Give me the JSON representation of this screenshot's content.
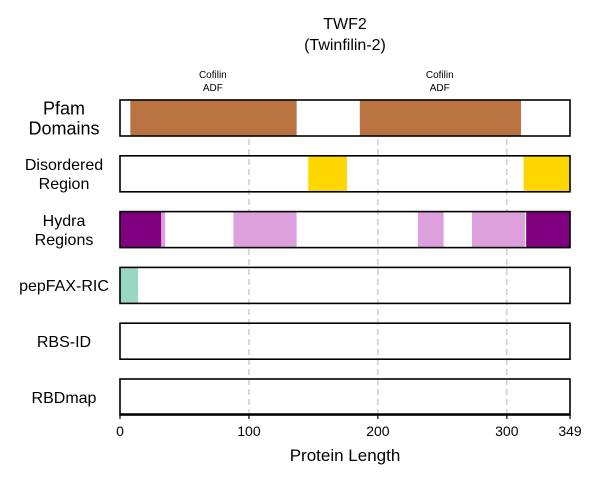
{
  "chart_data": {
    "type": "bar",
    "title": "TWF2",
    "subtitle": "(Twinfilin-2)",
    "xlabel": "Protein Length",
    "xlim": [
      0,
      349
    ],
    "xticks": [
      0,
      100,
      200,
      300,
      349
    ],
    "grid_x": [
      100,
      200,
      300
    ],
    "tracks": [
      {
        "label_lines": [
          "Pfam",
          "Domains"
        ],
        "segments": [
          {
            "start": 8,
            "end": 137,
            "color": "#B87340"
          },
          {
            "start": 186,
            "end": 311,
            "color": "#B87340"
          }
        ],
        "annotations": [
          {
            "center": 72,
            "lines": [
              "Cofilin",
              "ADF"
            ]
          },
          {
            "center": 248,
            "lines": [
              "Cofilin",
              "ADF"
            ]
          }
        ]
      },
      {
        "label_lines": [
          "Disordered",
          "Region"
        ],
        "segments": [
          {
            "start": 146,
            "end": 176,
            "color": "#FFD700"
          },
          {
            "start": 313,
            "end": 349,
            "color": "#FFD700"
          }
        ]
      },
      {
        "label_lines": [
          "Hydra",
          "Regions"
        ],
        "segments": [
          {
            "start": 0,
            "end": 32,
            "color": "#800080"
          },
          {
            "start": 32,
            "end": 35,
            "color": "#DDA0DD"
          },
          {
            "start": 88,
            "end": 137,
            "color": "#DDA0DD"
          },
          {
            "start": 231,
            "end": 251,
            "color": "#DDA0DD"
          },
          {
            "start": 273,
            "end": 314,
            "color": "#DDA0DD"
          },
          {
            "start": 315,
            "end": 349,
            "color": "#800080"
          }
        ]
      },
      {
        "label_lines": [
          "pepFAX-RIC"
        ],
        "segments": [
          {
            "start": 0,
            "end": 14,
            "color": "#98D8C0"
          }
        ]
      },
      {
        "label_lines": [
          "RBS-ID"
        ],
        "segments": []
      },
      {
        "label_lines": [
          "RBDmap"
        ],
        "segments": []
      }
    ]
  }
}
